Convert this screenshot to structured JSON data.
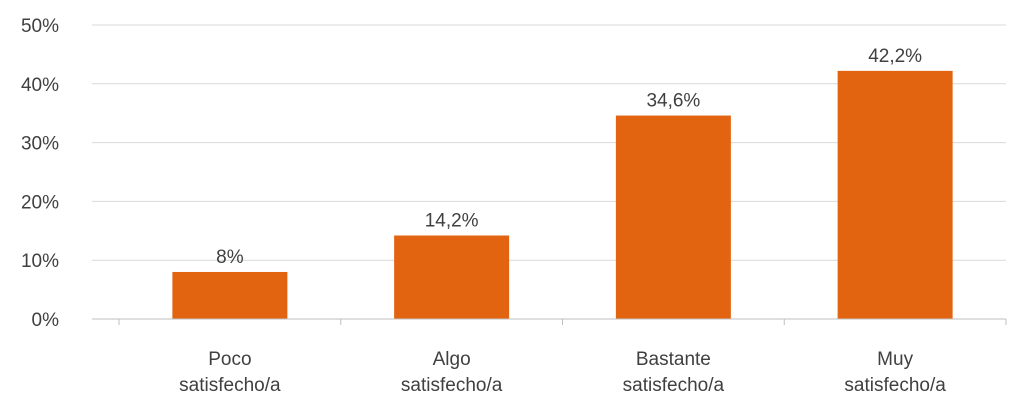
{
  "chart_data": {
    "type": "bar",
    "categories": [
      [
        "Poco",
        "satisfecho/a"
      ],
      [
        "Algo",
        "satisfecho/a"
      ],
      [
        "Bastante",
        "satisfecho/a"
      ],
      [
        "Muy",
        "satisfecho/a"
      ]
    ],
    "values": [
      8,
      14.2,
      34.6,
      42.2
    ],
    "data_labels": [
      "8%",
      "14,2%",
      "34,6%",
      "42,2%"
    ],
    "yticks": [
      0,
      10,
      20,
      30,
      40,
      50
    ],
    "ytick_labels": [
      "0%",
      "10%",
      "20%",
      "30%",
      "40%",
      "50%"
    ],
    "ylim": [
      0,
      50
    ],
    "grid": true,
    "legend": "none",
    "title": "",
    "xlabel": "",
    "ylabel": "",
    "colors": {
      "bar": "#E36410",
      "grid": "#D9D9D9",
      "axis": "#BFBFBF",
      "text": "#404040"
    }
  }
}
